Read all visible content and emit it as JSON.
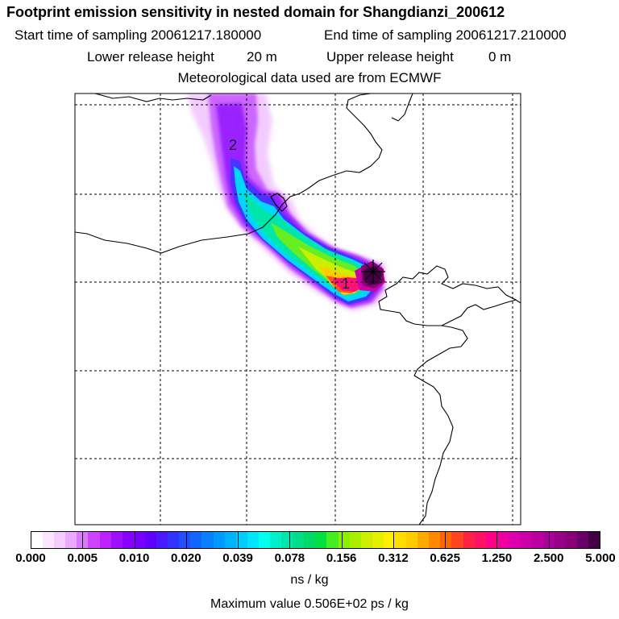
{
  "header": {
    "title": "Footprint emission sensitivity in nested domain for Shangdianzi_200612",
    "start_label": "Start time of sampling 20061217.180000",
    "end_label": "End time of sampling 20061217.210000",
    "lower_label": "Lower release height",
    "lower_value": "20 m",
    "upper_label": "Upper release height",
    "upper_value": "0 m",
    "met_label": "Meteorological data used are from ECMWF"
  },
  "map": {
    "markers": [
      "2",
      "1"
    ]
  },
  "colorbar": {
    "tick_labels": [
      "0.000",
      "0.005",
      "0.010",
      "0.020",
      "0.039",
      "0.078",
      "0.156",
      "0.312",
      "0.625",
      "1.250",
      "2.500",
      "5.000"
    ],
    "colors": [
      "#ffffff",
      "#fbe6ff",
      "#f5ccff",
      "#ecaaff",
      "#dd77ff",
      "#cc44ff",
      "#bb22ff",
      "#9c10ff",
      "#8800ff",
      "#7700ff",
      "#6200ff",
      "#4a1aff",
      "#3333ff",
      "#2050ff",
      "#1166ff",
      "#0a80ff",
      "#0099ff",
      "#00b3ff",
      "#00ccff",
      "#00e6ff",
      "#00ffee",
      "#00f0cc",
      "#00e6aa",
      "#00dd88",
      "#00d966",
      "#00e040",
      "#44ee22",
      "#88f000",
      "#aaee00",
      "#ccee00",
      "#e6ee00",
      "#ffee00",
      "#ffdd00",
      "#ffcc00",
      "#ffaa00",
      "#ff8800",
      "#ff6600",
      "#ff4422",
      "#ff2244",
      "#ff1166",
      "#ff0088",
      "#ee00a0",
      "#dd00aa",
      "#cc00aa",
      "#bb00a0",
      "#aa0099",
      "#990088",
      "#880077",
      "#660066",
      "#440044"
    ],
    "unit": "ns / kg"
  },
  "footer": {
    "max_label": "Maximum value  0.506E+02 ps / kg"
  }
}
